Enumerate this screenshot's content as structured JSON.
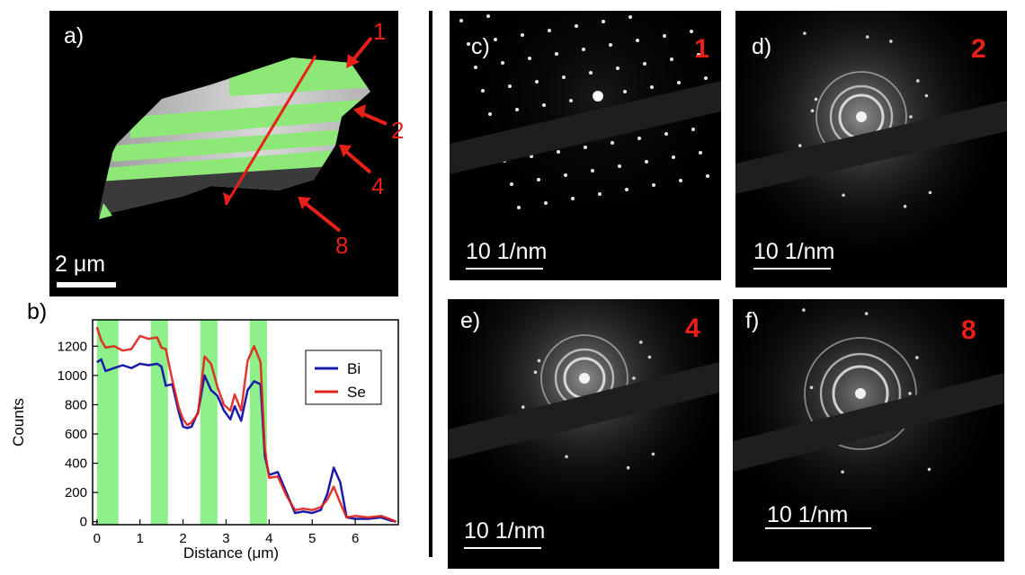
{
  "panel_a": {
    "label": "a)",
    "scale_bar": "2 μm",
    "arrow_labels": [
      "1",
      "2",
      "4",
      "8"
    ]
  },
  "diffraction_panels": [
    {
      "label": "c)",
      "number": "1",
      "scale_bar": "10 1/nm",
      "pattern": "single-crystal-spots"
    },
    {
      "label": "d)",
      "number": "2",
      "scale_bar": "10 1/nm",
      "pattern": "rings-with-spots"
    },
    {
      "label": "e)",
      "number": "4",
      "scale_bar": "10 1/nm",
      "pattern": "rings-with-spots"
    },
    {
      "label": "f)",
      "number": "8",
      "scale_bar": "10 1/nm",
      "pattern": "polycrystalline-rings"
    }
  ],
  "colors": {
    "annotation_red": "#e8201a",
    "bi_line": "#1a1aa8",
    "se_line": "#e0201a",
    "green_highlight": "#8ef08a"
  },
  "chart_data": {
    "type": "line",
    "panel_label": "b)",
    "xlabel": "Distance (μm)",
    "ylabel": "Counts",
    "xlim": [
      -0.1,
      7.0
    ],
    "ylim": [
      -20,
      1380
    ],
    "xticks": [
      0,
      1,
      2,
      3,
      4,
      5,
      6
    ],
    "yticks": [
      0,
      200,
      400,
      600,
      800,
      1000,
      1200
    ],
    "highlight_ranges": [
      [
        0,
        0.5
      ],
      [
        1.25,
        1.65
      ],
      [
        2.4,
        2.8
      ],
      [
        3.55,
        3.95
      ]
    ],
    "legend_position": "right",
    "series": [
      {
        "name": "Bi",
        "x": [
          0,
          0.1,
          0.2,
          0.4,
          0.6,
          0.8,
          1.0,
          1.2,
          1.4,
          1.5,
          1.6,
          1.75,
          1.9,
          2.0,
          2.1,
          2.2,
          2.35,
          2.5,
          2.65,
          2.8,
          2.95,
          3.1,
          3.2,
          3.35,
          3.5,
          3.65,
          3.8,
          3.9,
          4.0,
          4.2,
          4.4,
          4.6,
          4.8,
          5.0,
          5.2,
          5.35,
          5.5,
          5.65,
          5.8,
          6.0,
          6.3,
          6.6,
          6.8,
          6.95
        ],
        "values": [
          1090,
          1110,
          1030,
          1050,
          1070,
          1050,
          1080,
          1070,
          1080,
          1060,
          930,
          940,
          750,
          650,
          640,
          650,
          750,
          1000,
          900,
          860,
          760,
          700,
          790,
          690,
          900,
          960,
          940,
          450,
          320,
          340,
          200,
          60,
          70,
          60,
          80,
          190,
          370,
          270,
          30,
          20,
          20,
          30,
          10,
          0
        ]
      },
      {
        "name": "Se",
        "x": [
          0,
          0.1,
          0.2,
          0.4,
          0.6,
          0.8,
          1.0,
          1.2,
          1.4,
          1.5,
          1.6,
          1.75,
          1.9,
          2.0,
          2.1,
          2.2,
          2.35,
          2.5,
          2.65,
          2.8,
          2.95,
          3.1,
          3.2,
          3.35,
          3.5,
          3.65,
          3.8,
          3.9,
          4.0,
          4.2,
          4.4,
          4.6,
          4.8,
          5.0,
          5.2,
          5.35,
          5.5,
          5.65,
          5.8,
          6.0,
          6.3,
          6.6,
          6.8,
          6.95
        ],
        "values": [
          1330,
          1240,
          1190,
          1200,
          1170,
          1180,
          1270,
          1250,
          1260,
          1190,
          1180,
          970,
          780,
          700,
          660,
          680,
          740,
          1130,
          1080,
          920,
          800,
          760,
          870,
          760,
          1100,
          1200,
          1090,
          500,
          300,
          310,
          180,
          80,
          90,
          80,
          100,
          150,
          240,
          130,
          30,
          40,
          30,
          40,
          20,
          0
        ]
      }
    ]
  }
}
